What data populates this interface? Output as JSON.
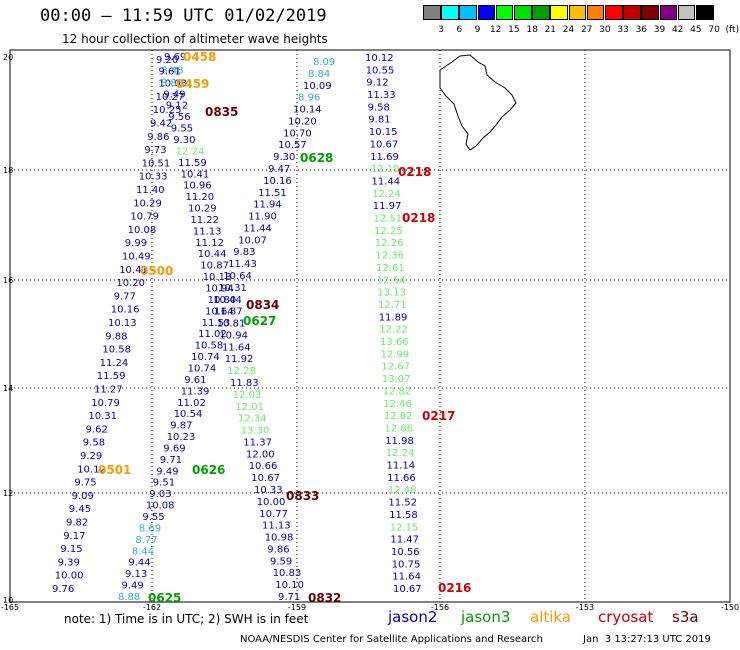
{
  "title": "00:00 – 11:59 UTC 01/02/2019",
  "subtitle": "12 hour collection of altimeter wave heights",
  "colorbar": {
    "colors": [
      "#808080",
      "#00ffff",
      "#00c0ff",
      "#0000ff",
      "#00ff00",
      "#00e000",
      "#00a000",
      "#ffff00",
      "#ffc000",
      "#ff8000",
      "#ff0000",
      "#c00000",
      "#800000",
      "#800080",
      "#c0c0c0",
      "#000000"
    ],
    "labels": [
      "3",
      "6",
      "9",
      "12",
      "15",
      "18",
      "21",
      "24",
      "27",
      "30",
      "33",
      "36",
      "39",
      "42",
      "45",
      "70",
      "(ft)"
    ]
  },
  "axes": {
    "lon_ticks": [
      "-165",
      "-162",
      "-159",
      "-156",
      "-153",
      "-150"
    ],
    "lat_ticks": [
      "20",
      "18",
      "16",
      "14",
      "12",
      "10"
    ]
  },
  "colors": {
    "jason2": "#0000c0",
    "jason3": "#00a000",
    "altika": "#ff9900",
    "cryosat": "#cc0000",
    "s3a": "#660000",
    "light_green": "#66ee66",
    "cyan": "#33aadd"
  },
  "tracks": [
    {
      "id": "t1",
      "values": [
        [
          "9.69",
          "j2"
        ],
        [
          "8.48",
          "cy"
        ],
        [
          "10.03",
          "j2"
        ],
        [
          "10.27",
          "j2"
        ],
        [
          "10.25",
          "j2"
        ],
        [
          "9.42",
          "j2"
        ],
        [
          "9.86",
          "j2"
        ],
        [
          "9.73",
          "j2"
        ],
        [
          "10.51",
          "j2"
        ],
        [
          "10.33",
          "j2"
        ],
        [
          "11.40",
          "j2"
        ],
        [
          "10.29",
          "j2"
        ],
        [
          "10.79",
          "j2"
        ],
        [
          "10.08",
          "j2"
        ],
        [
          "9.99",
          "j2"
        ],
        [
          "10.49",
          "j2"
        ],
        [
          "10.41",
          "j2"
        ],
        [
          "10.20",
          "j2"
        ],
        [
          "9.77",
          "j2"
        ],
        [
          "10.16",
          "j2"
        ],
        [
          "10.13",
          "j2"
        ],
        [
          "9.88",
          "j2"
        ],
        [
          "10.58",
          "j2"
        ],
        [
          "11.24",
          "j2"
        ],
        [
          "11.59",
          "j2"
        ],
        [
          "11.27",
          "j2"
        ],
        [
          "10.79",
          "j2"
        ],
        [
          "10.31",
          "j2"
        ],
        [
          "9.62",
          "j2"
        ],
        [
          "9.58",
          "j2"
        ],
        [
          "9.29",
          "j2"
        ],
        [
          "10.12",
          "j2"
        ],
        [
          "9.75",
          "j2"
        ],
        [
          "9.09",
          "j2"
        ],
        [
          "9.45",
          "j2"
        ],
        [
          "9.82",
          "j2"
        ],
        [
          "9.17",
          "j2"
        ],
        [
          "9.15",
          "j2"
        ],
        [
          "9.39",
          "j2"
        ],
        [
          "10.00",
          "j2"
        ],
        [
          "9.76",
          "j2"
        ]
      ]
    },
    {
      "id": "t2",
      "values": [
        [
          "9.20",
          "j2"
        ],
        [
          "9.61",
          "j2"
        ],
        [
          "8.88",
          "cy"
        ],
        [
          "9.49",
          "j2"
        ],
        [
          "9.12",
          "j2"
        ],
        [
          "9.56",
          "j2"
        ],
        [
          "9.55",
          "j2"
        ],
        [
          "9.30",
          "j2"
        ],
        [
          "12.24",
          "lg"
        ],
        [
          "11.59",
          "j2"
        ],
        [
          "10.41",
          "j2"
        ],
        [
          "10.96",
          "j2"
        ],
        [
          "11.20",
          "j2"
        ],
        [
          "10.29",
          "j2"
        ],
        [
          "11.22",
          "j2"
        ],
        [
          "11.13",
          "j2"
        ],
        [
          "11.12",
          "j2"
        ],
        [
          "10.44",
          "j2"
        ],
        [
          "10.87",
          "j2"
        ],
        [
          "10.18",
          "j2"
        ],
        [
          "10.94",
          "j2"
        ],
        [
          "10.80",
          "j2"
        ],
        [
          "10.64",
          "j2"
        ],
        [
          "11.53",
          "j2"
        ],
        [
          "11.02",
          "j2"
        ],
        [
          "10.58",
          "j2"
        ],
        [
          "10.74",
          "j2"
        ],
        [
          "10.74",
          "j2"
        ],
        [
          "9.61",
          "j2"
        ],
        [
          "11.39",
          "j2"
        ],
        [
          "11.02",
          "j2"
        ],
        [
          "10.54",
          "j2"
        ],
        [
          "9.87",
          "j2"
        ],
        [
          "10.23",
          "j2"
        ],
        [
          "9.69",
          "j2"
        ],
        [
          "9.71",
          "j2"
        ],
        [
          "9.49",
          "j2"
        ],
        [
          "9.51",
          "j2"
        ],
        [
          "9.03",
          "j2"
        ],
        [
          "10.08",
          "j2"
        ],
        [
          "9.55",
          "j2"
        ],
        [
          "8.69",
          "cy"
        ],
        [
          "8.77",
          "cy"
        ],
        [
          "8.44",
          "cy"
        ],
        [
          "9.44",
          "j2"
        ],
        [
          "9.13",
          "j2"
        ],
        [
          "9.49",
          "j2"
        ],
        [
          "8.88",
          "cy"
        ]
      ]
    },
    {
      "id": "t3",
      "values": [
        [
          "8.09",
          "cy"
        ],
        [
          "8.84",
          "cy"
        ],
        [
          "10.09",
          "j2"
        ],
        [
          "8.96",
          "cy"
        ],
        [
          "10.14",
          "j2"
        ],
        [
          "10.20",
          "j2"
        ],
        [
          "10.70",
          "j2"
        ],
        [
          "10.57",
          "j2"
        ],
        [
          "9.30",
          "j2"
        ],
        [
          "9.47",
          "j2"
        ],
        [
          "10.16",
          "j2"
        ],
        [
          "11.51",
          "j2"
        ],
        [
          "11.94",
          "j2"
        ],
        [
          "11.90",
          "j2"
        ],
        [
          "11.44",
          "j2"
        ],
        [
          "10.07",
          "j2"
        ],
        [
          "9.83",
          "j2"
        ],
        [
          "11.43",
          "j2"
        ],
        [
          "10.64",
          "j2"
        ],
        [
          "10.31",
          "j2"
        ],
        [
          "10.44",
          "j2"
        ],
        [
          "11.87",
          "j2"
        ],
        [
          "10.81",
          "j2"
        ],
        [
          "10.94",
          "j2"
        ],
        [
          "11.64",
          "j2"
        ],
        [
          "11.92",
          "j2"
        ],
        [
          "12.28",
          "lg"
        ],
        [
          "11.83",
          "j2"
        ],
        [
          "12.03",
          "lg"
        ],
        [
          "12.01",
          "lg"
        ],
        [
          "12.34",
          "lg"
        ],
        [
          "13.30",
          "lg"
        ],
        [
          "11.37",
          "j2"
        ],
        [
          "12.00",
          "j2"
        ],
        [
          "10.66",
          "j2"
        ],
        [
          "10.67",
          "j2"
        ],
        [
          "10.33",
          "j2"
        ],
        [
          "10.00",
          "j2"
        ],
        [
          "10.77",
          "j2"
        ],
        [
          "11.13",
          "j2"
        ],
        [
          "10.98",
          "j2"
        ],
        [
          "9.86",
          "j2"
        ],
        [
          "9.59",
          "j2"
        ],
        [
          "10.83",
          "j2"
        ],
        [
          "10.10",
          "j2"
        ],
        [
          "9.71",
          "j2"
        ]
      ]
    },
    {
      "id": "t4",
      "values": [
        [
          "10.12",
          "j2"
        ],
        [
          "10.55",
          "j2"
        ],
        [
          "9.12",
          "j2"
        ],
        [
          "11.33",
          "j2"
        ],
        [
          "9.58",
          "j2"
        ],
        [
          "9.81",
          "j2"
        ],
        [
          "10.15",
          "j2"
        ],
        [
          "10.67",
          "j2"
        ],
        [
          "11.69",
          "j2"
        ],
        [
          "12.19",
          "lg"
        ],
        [
          "11.44",
          "j2"
        ],
        [
          "12.24",
          "lg"
        ],
        [
          "11.97",
          "j2"
        ],
        [
          "12.51",
          "lg"
        ],
        [
          "12.25",
          "lg"
        ],
        [
          "12.26",
          "lg"
        ],
        [
          "12.36",
          "lg"
        ],
        [
          "12.61",
          "lg"
        ],
        [
          "12.54",
          "lg"
        ],
        [
          "13.13",
          "lg"
        ],
        [
          "12.71",
          "lg"
        ],
        [
          "11.89",
          "j2"
        ],
        [
          "12.22",
          "lg"
        ],
        [
          "13.66",
          "lg"
        ],
        [
          "12.99",
          "lg"
        ],
        [
          "12.67",
          "lg"
        ],
        [
          "13.07",
          "lg"
        ],
        [
          "12.82",
          "lg"
        ],
        [
          "12.46",
          "lg"
        ],
        [
          "12.82",
          "lg"
        ],
        [
          "12.86",
          "lg"
        ],
        [
          "11.98",
          "j2"
        ],
        [
          "12.24",
          "lg"
        ],
        [
          "11.14",
          "j2"
        ],
        [
          "11.66",
          "j2"
        ],
        [
          "12.48",
          "lg"
        ],
        [
          "11.52",
          "j2"
        ],
        [
          "11.58",
          "j2"
        ],
        [
          "12.15",
          "lg"
        ],
        [
          "11.47",
          "j2"
        ],
        [
          "10.56",
          "j2"
        ],
        [
          "10.75",
          "j2"
        ],
        [
          "11.64",
          "j2"
        ],
        [
          "10.67",
          "j2"
        ]
      ]
    }
  ],
  "times": [
    {
      "label": "0458",
      "sat": "al"
    },
    {
      "label": "0459",
      "sat": "al"
    },
    {
      "label": "0835",
      "sat": "s3"
    },
    {
      "label": "0628",
      "sat": "j3"
    },
    {
      "label": "0218",
      "sat": "cs"
    },
    {
      "label": "0218",
      "sat": "cs"
    },
    {
      "label": "0500",
      "sat": "al"
    },
    {
      "label": "0834",
      "sat": "s3"
    },
    {
      "label": "0627",
      "sat": "j3"
    },
    {
      "label": "0217",
      "sat": "cs"
    },
    {
      "label": "0501",
      "sat": "al"
    },
    {
      "label": "0626",
      "sat": "j3"
    },
    {
      "label": "0833",
      "sat": "s3"
    },
    {
      "label": "0625",
      "sat": "j3"
    },
    {
      "label": "0832",
      "sat": "s3"
    },
    {
      "label": "0216",
      "sat": "cs"
    }
  ],
  "note": "note: 1) Time is in UTC; 2) SWH is in feet",
  "legend": {
    "jason2": "jason2",
    "jason3": "jason3",
    "altika": "altika",
    "cryosat": "cryosat",
    "s3a": "s3a"
  },
  "credit": "NOAA/NESDIS Center for Satellite Applications and Research",
  "timestamp": "Jan  3 13:27:13 UTC 2019"
}
